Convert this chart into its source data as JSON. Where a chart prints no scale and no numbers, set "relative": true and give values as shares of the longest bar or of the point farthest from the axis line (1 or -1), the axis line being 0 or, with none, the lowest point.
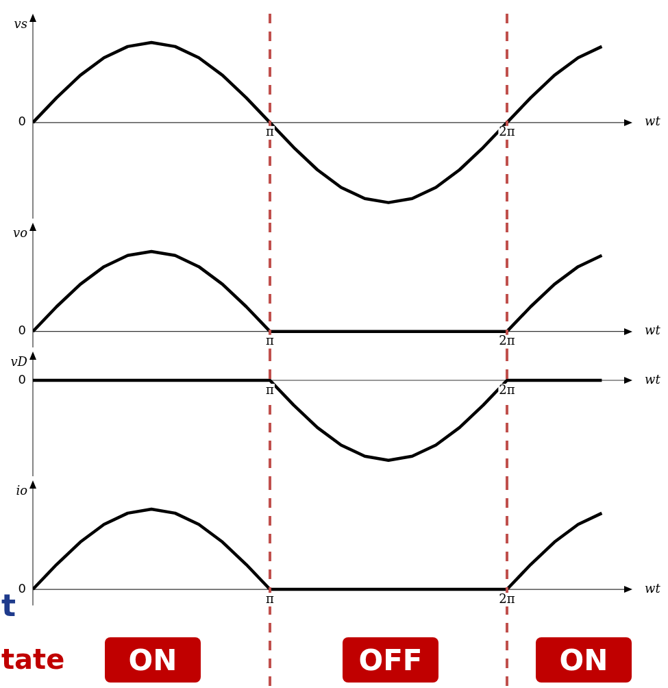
{
  "chart_data": [
    {
      "type": "line",
      "relative": true,
      "ylabel": "vs",
      "xlabel": "wt",
      "annotations": [
        "0"
      ],
      "categories": [
        null,
        null,
        null,
        null,
        null,
        null,
        null,
        null,
        null,
        null,
        "π",
        null,
        null,
        null,
        null,
        null,
        null,
        null,
        null,
        null,
        "2π",
        null,
        null,
        null,
        null
      ],
      "ref_lines": [
        {
          "axis": "x",
          "value": "π",
          "color": "#c0504d",
          "line_style": "dashed"
        },
        {
          "axis": "x",
          "value": "2π",
          "color": "#c0504d",
          "line_style": "dashed"
        }
      ],
      "series": [
        {
          "color": "#000000",
          "values": [
            0,
            0.31,
            0.59,
            0.81,
            0.95,
            1,
            0.95,
            0.81,
            0.59,
            0.31,
            0,
            -0.31,
            -0.59,
            -0.81,
            -0.95,
            -1,
            -0.95,
            -0.81,
            -0.59,
            -0.31,
            0,
            0.31,
            0.59,
            0.81,
            0.95
          ]
        }
      ]
    },
    {
      "type": "line",
      "relative": true,
      "ylabel": "vo",
      "xlabel": "wt",
      "annotations": [
        "0"
      ],
      "categories": [
        null,
        null,
        null,
        null,
        null,
        null,
        null,
        null,
        null,
        null,
        "π",
        null,
        null,
        null,
        null,
        null,
        null,
        null,
        null,
        null,
        "2π",
        null,
        null,
        null,
        null
      ],
      "ref_lines": [
        {
          "axis": "x",
          "value": "π",
          "color": "#c0504d",
          "line_style": "dashed"
        },
        {
          "axis": "x",
          "value": "2π",
          "color": "#c0504d",
          "line_style": "dashed"
        }
      ],
      "series": [
        {
          "color": "#000000",
          "values": [
            0,
            0.31,
            0.59,
            0.81,
            0.95,
            1,
            0.95,
            0.81,
            0.59,
            0.31,
            0,
            0,
            0,
            0,
            0,
            0,
            0,
            0,
            0,
            0,
            0,
            0.31,
            0.59,
            0.81,
            0.95
          ]
        }
      ]
    },
    {
      "type": "line",
      "relative": true,
      "ylabel": "vD",
      "xlabel": "wt",
      "annotations": [
        "0"
      ],
      "categories": [
        null,
        null,
        null,
        null,
        null,
        null,
        null,
        null,
        null,
        null,
        "π",
        null,
        null,
        null,
        null,
        null,
        null,
        null,
        null,
        null,
        "2π",
        null,
        null,
        null,
        null
      ],
      "ref_lines": [
        {
          "axis": "x",
          "value": "π",
          "color": "#c0504d",
          "line_style": "dashed"
        },
        {
          "axis": "x",
          "value": "2π",
          "color": "#c0504d",
          "line_style": "dashed"
        }
      ],
      "series": [
        {
          "color": "#000000",
          "values": [
            0,
            0,
            0,
            0,
            0,
            0,
            0,
            0,
            0,
            0,
            0,
            -0.31,
            -0.59,
            -0.81,
            -0.95,
            -1,
            -0.95,
            -0.81,
            -0.59,
            -0.31,
            0,
            0,
            0,
            0,
            0
          ]
        }
      ]
    },
    {
      "type": "line",
      "relative": true,
      "ylabel": "io",
      "xlabel": "wt",
      "annotations": [
        "0"
      ],
      "categories": [
        null,
        null,
        null,
        null,
        null,
        null,
        null,
        null,
        null,
        null,
        "π",
        null,
        null,
        null,
        null,
        null,
        null,
        null,
        null,
        null,
        "2π",
        null,
        null,
        null,
        null
      ],
      "ref_lines": [
        {
          "axis": "x",
          "value": "π",
          "color": "#c0504d",
          "line_style": "dashed"
        },
        {
          "axis": "x",
          "value": "2π",
          "color": "#c0504d",
          "line_style": "dashed"
        }
      ],
      "series": [
        {
          "color": "#000000",
          "values": [
            0,
            0.31,
            0.59,
            0.81,
            0.95,
            1,
            0.95,
            0.81,
            0.59,
            0.31,
            0,
            0,
            0,
            0,
            0,
            0,
            0,
            0,
            0,
            0,
            0,
            0.31,
            0.59,
            0.81,
            0.95
          ]
        }
      ]
    },
    {
      "type": "other",
      "annotations": [
        "t",
        "tate",
        "ON",
        "OFF",
        "ON"
      ]
    }
  ]
}
